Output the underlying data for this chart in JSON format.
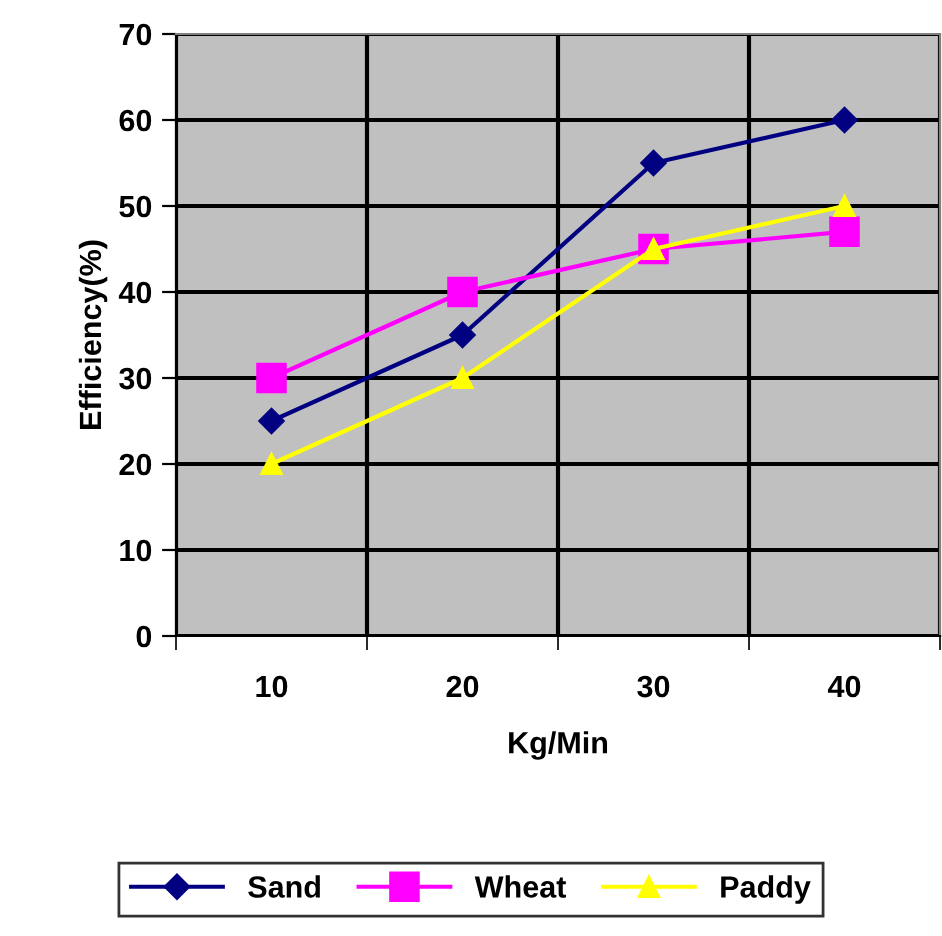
{
  "chart_data": {
    "type": "line",
    "xlabel": "Kg/Min",
    "ylabel": "Efficiency(%)",
    "categories": [
      "10",
      "20",
      "30",
      "40"
    ],
    "series": [
      {
        "name": "Sand",
        "color": "#000080",
        "values": [
          25,
          35,
          55,
          60
        ],
        "marker": "diamond"
      },
      {
        "name": "Wheat",
        "color": "#ff00ff",
        "values": [
          30,
          40,
          45,
          47
        ],
        "marker": "square"
      },
      {
        "name": "Paddy",
        "color": "#ffff00",
        "values": [
          20,
          30,
          45,
          50
        ],
        "marker": "triangle"
      }
    ],
    "ylim": [
      0,
      70
    ],
    "yticks": [
      0,
      10,
      20,
      30,
      40,
      50,
      60,
      70
    ],
    "grid": true,
    "legend": "bottom",
    "line_style": "solid"
  }
}
